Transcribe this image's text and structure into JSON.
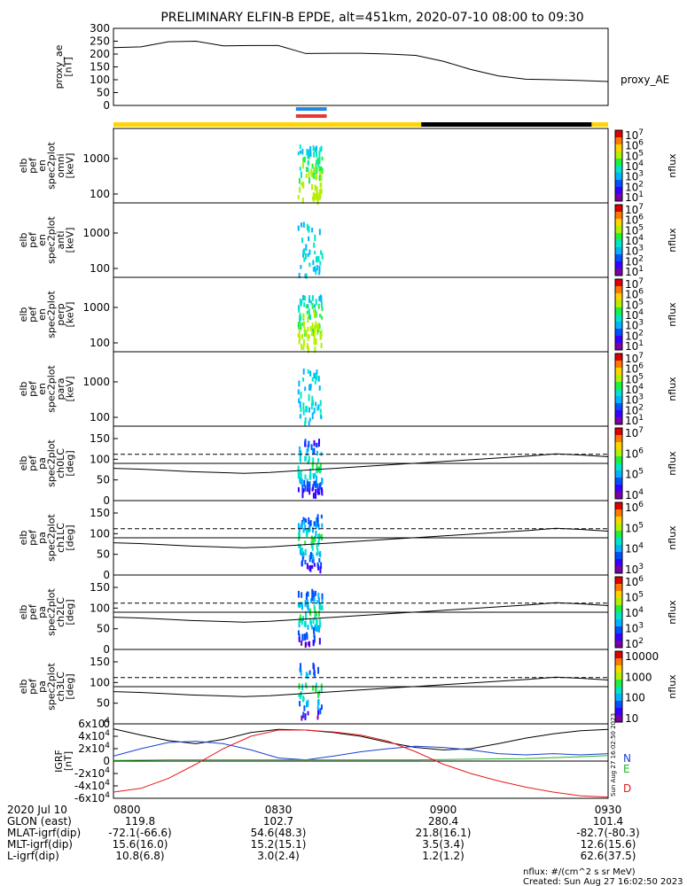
{
  "title": "PRELIMINARY ELFIN-B EPDE, alt=451km, 2020-07-10 08:00 to 09:30",
  "colors": {
    "bar_yellow": "#FFD400",
    "bar_black": "#000000",
    "science_blue": "#1E88E5",
    "science_red": "#E53935",
    "comp_N": "#1a3fd0",
    "comp_E": "#22b522",
    "comp_D": "#e31a1c"
  },
  "chart_data": [
    {
      "id": "proxy_ae",
      "type": "line",
      "ylabel": [
        "proxy_ae",
        "[nT]"
      ],
      "legend": "proxy_AE",
      "ylim": [
        0,
        300
      ],
      "yticks": [
        "300",
        "250",
        "200",
        "150",
        "100",
        "50",
        "0"
      ],
      "x": [
        0,
        5,
        10,
        15,
        20,
        25,
        30,
        35,
        40,
        45,
        50,
        55,
        60,
        65,
        70,
        75,
        80,
        85,
        90
      ],
      "values": [
        225,
        228,
        248,
        250,
        232,
        233,
        233,
        202,
        203,
        203,
        200,
        195,
        172,
        140,
        115,
        102,
        100,
        97,
        93
      ]
    },
    {
      "id": "spec_omni",
      "type": "heatmap",
      "ylabel": [
        "elb",
        "pef",
        "en",
        "spec2plot",
        "omni",
        "[keV]"
      ],
      "yscale": "log",
      "yticks": [
        "1000",
        "100"
      ],
      "cbar_ticks": [
        "10^7",
        "10^6",
        "10^5",
        "10^4",
        "10^3",
        "10^2",
        "10^1"
      ],
      "cbar_label": "nflux",
      "active_minutes": [
        33.5,
        38.5
      ]
    },
    {
      "id": "spec_anti",
      "type": "heatmap",
      "ylabel": [
        "elb",
        "pef",
        "en",
        "spec2plot",
        "anti",
        "[keV]"
      ],
      "yscale": "log",
      "yticks": [
        "1000",
        "100"
      ],
      "cbar_ticks": [
        "10^7",
        "10^6",
        "10^5",
        "10^4",
        "10^3",
        "10^2",
        "10^1"
      ],
      "cbar_label": "nflux",
      "active_minutes": [
        33.5,
        38.5
      ]
    },
    {
      "id": "spec_perp",
      "type": "heatmap",
      "ylabel": [
        "elb",
        "pef",
        "en",
        "spec2plot",
        "perp",
        "[keV]"
      ],
      "yscale": "log",
      "yticks": [
        "1000",
        "100"
      ],
      "cbar_ticks": [
        "10^7",
        "10^6",
        "10^5",
        "10^4",
        "10^3",
        "10^2",
        "10^1"
      ],
      "cbar_label": "nflux",
      "active_minutes": [
        33.5,
        38.5
      ]
    },
    {
      "id": "spec_para",
      "type": "heatmap",
      "ylabel": [
        "elb",
        "pef",
        "en",
        "spec2plot",
        "para",
        "[keV]"
      ],
      "yscale": "log",
      "yticks": [
        "1000",
        "100"
      ],
      "cbar_ticks": [
        "10^7",
        "10^6",
        "10^5",
        "10^4",
        "10^3",
        "10^2",
        "10^1"
      ],
      "cbar_label": "nflux",
      "active_minutes": [
        33.5,
        38.5
      ]
    },
    {
      "id": "pa_ch0",
      "type": "heatmap",
      "ylabel": [
        "elb",
        "pef",
        "pa",
        "spec2plot",
        "ch0LC",
        "[deg]"
      ],
      "ylim": [
        0,
        180
      ],
      "yticks": [
        "150",
        "100",
        "50",
        "0"
      ],
      "cbar_ticks": [
        "10^7",
        "10^6",
        "10^5",
        "10^4"
      ],
      "cbar_label": "nflux",
      "lc_dashed_deg": 112,
      "lc_solid_deg": [
        78,
        76,
        73,
        70,
        68,
        66,
        68,
        72,
        76,
        80,
        84,
        88,
        92,
        96,
        100,
        104,
        108,
        113,
        110,
        106
      ]
    },
    {
      "id": "pa_ch1",
      "type": "heatmap",
      "ylabel": [
        "elb",
        "pef",
        "pa",
        "spec2plot",
        "ch1LC",
        "[deg]"
      ],
      "ylim": [
        0,
        180
      ],
      "yticks": [
        "150",
        "100",
        "50",
        "0"
      ],
      "cbar_ticks": [
        "10^6",
        "10^5",
        "10^4",
        "10^3"
      ],
      "cbar_label": "nflux",
      "lc_dashed_deg": 112,
      "lc_solid_deg": [
        78,
        76,
        73,
        70,
        68,
        66,
        68,
        72,
        76,
        80,
        84,
        88,
        92,
        96,
        100,
        104,
        108,
        113,
        110,
        106
      ]
    },
    {
      "id": "pa_ch2",
      "type": "heatmap",
      "ylabel": [
        "elb",
        "pef",
        "pa",
        "spec2plot",
        "ch2LC",
        "[deg]"
      ],
      "ylim": [
        0,
        180
      ],
      "yticks": [
        "150",
        "100",
        "50",
        "0"
      ],
      "cbar_ticks": [
        "10^6",
        "10^5",
        "10^4",
        "10^3",
        "10^2"
      ],
      "cbar_label": "nflux",
      "lc_dashed_deg": 112,
      "lc_solid_deg": [
        78,
        76,
        73,
        70,
        68,
        66,
        68,
        72,
        76,
        80,
        84,
        88,
        92,
        96,
        100,
        104,
        108,
        113,
        110,
        106
      ]
    },
    {
      "id": "pa_ch3",
      "type": "heatmap",
      "ylabel": [
        "elb",
        "pef",
        "pa",
        "spec2plot",
        "ch3LC",
        "[deg]"
      ],
      "ylim": [
        0,
        180
      ],
      "yticks": [
        "150",
        "100",
        "50",
        "0"
      ],
      "cbar_ticks": [
        "10000",
        "1000",
        "100",
        "10"
      ],
      "cbar_label": "nflux",
      "lc_dashed_deg": 112,
      "lc_solid_deg": [
        78,
        76,
        73,
        70,
        68,
        66,
        68,
        72,
        76,
        80,
        84,
        88,
        92,
        96,
        100,
        104,
        108,
        113,
        110,
        106
      ]
    },
    {
      "id": "igrf",
      "type": "line",
      "ylabel": [
        "IGRF",
        "[nT]"
      ],
      "ylim": [
        -60000,
        60000
      ],
      "yticks": [
        "6x10^4",
        "4x10^4",
        "2x10^4",
        "0",
        "-2x10^4",
        "-4x10^4",
        "-6x10^4"
      ],
      "x": [
        0,
        5,
        10,
        15,
        20,
        25,
        30,
        35,
        40,
        45,
        50,
        55,
        60,
        65,
        70,
        75,
        80,
        85,
        90
      ],
      "series": [
        {
          "name": "",
          "color_key": "bar_black",
          "values": [
            52000,
            42000,
            33000,
            28000,
            35000,
            46000,
            51000,
            50000,
            46000,
            40000,
            30000,
            22000,
            18000,
            20000,
            28000,
            37000,
            44000,
            49000,
            51000
          ]
        },
        {
          "name": "N",
          "color_key": "comp_N",
          "values": [
            8000,
            20000,
            30000,
            32000,
            28000,
            18000,
            5000,
            2000,
            8000,
            15000,
            20000,
            24000,
            22000,
            18000,
            12000,
            10000,
            12000,
            10000,
            12000
          ]
        },
        {
          "name": "E",
          "color_key": "comp_E",
          "values": [
            1000,
            1500,
            2000,
            2000,
            2000,
            2000,
            2000,
            2000,
            2000,
            2000,
            2000,
            2000,
            2500,
            3000,
            3500,
            4000,
            5500,
            7000,
            9000
          ]
        },
        {
          "name": "D",
          "color_key": "comp_D",
          "values": [
            -50000,
            -44000,
            -28000,
            -5000,
            20000,
            40000,
            50000,
            50000,
            47000,
            42000,
            32000,
            15000,
            -5000,
            -20000,
            -32000,
            -42000,
            -50000,
            -56000,
            -58000
          ]
        }
      ]
    }
  ],
  "ephemeris": {
    "date": "2020 Jul 10",
    "times": [
      "0800",
      "0830",
      "0900",
      "0930"
    ],
    "rows": [
      {
        "label": "GLON (east)",
        "values": [
          "119.8",
          "102.7",
          "280.4",
          "101.4"
        ]
      },
      {
        "label": "MLAT-igrf(dip)",
        "values": [
          "-72.1(-66.6)",
          "54.6(48.3)",
          "21.8(16.1)",
          "-82.7(-80.3)"
        ]
      },
      {
        "label": "MLT-igrf(dip)",
        "values": [
          "15.6(16.0)",
          "15.2(15.1)",
          "3.5(3.4)",
          "12.6(15.6)"
        ]
      },
      {
        "label": "L-igrf(dip)",
        "values": [
          "10.8(6.8)",
          "3.0(2.4)",
          "1.2(1.2)",
          "62.6(37.5)"
        ]
      }
    ]
  },
  "footer": {
    "units": "nflux: #/(cm^2 s sr MeV)",
    "created": "Created: Sun Aug 27 16:02:50 2023",
    "stamp": "Sun Aug 27 16:02:50 2023"
  }
}
